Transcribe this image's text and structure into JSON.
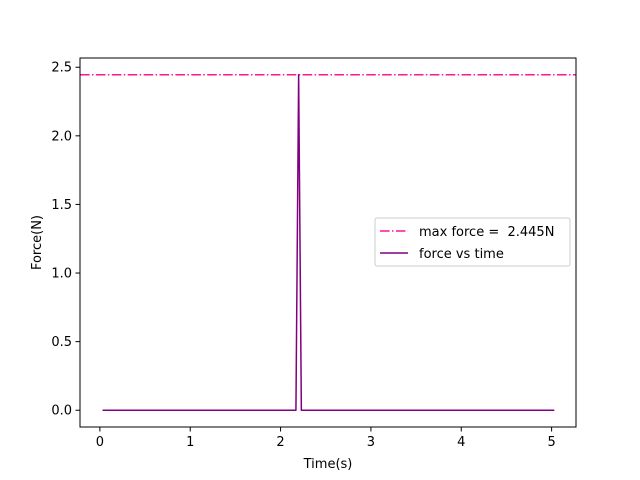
{
  "chart_data": {
    "type": "line",
    "title": "",
    "xlabel": "Time(s)",
    "ylabel": "Force(N)",
    "xlim": [
      -0.22,
      5.27
    ],
    "ylim": [
      -0.1223,
      2.5673
    ],
    "x_ticks": [
      0,
      1,
      2,
      3,
      4,
      5
    ],
    "y_ticks": [
      0.0,
      0.5,
      1.0,
      1.5,
      2.0,
      2.5
    ],
    "x_tick_labels": [
      "0",
      "1",
      "2",
      "3",
      "4",
      "5"
    ],
    "y_tick_labels": [
      "0.0",
      "0.5",
      "1.0",
      "1.5",
      "2.0",
      "2.5"
    ],
    "grid": false,
    "legend_position": "center-right",
    "series": [
      {
        "name": "max force =  2.445N",
        "kind": "hline",
        "y": 2.445,
        "color": "#ff1493",
        "line_style": "dash-dot"
      },
      {
        "name": "force vs time",
        "kind": "line",
        "color": "#800080",
        "x": [
          0.03,
          2.17,
          2.2,
          2.23,
          5.03
        ],
        "y": [
          0.0,
          0.0,
          2.445,
          0.0,
          0.0
        ]
      }
    ]
  }
}
